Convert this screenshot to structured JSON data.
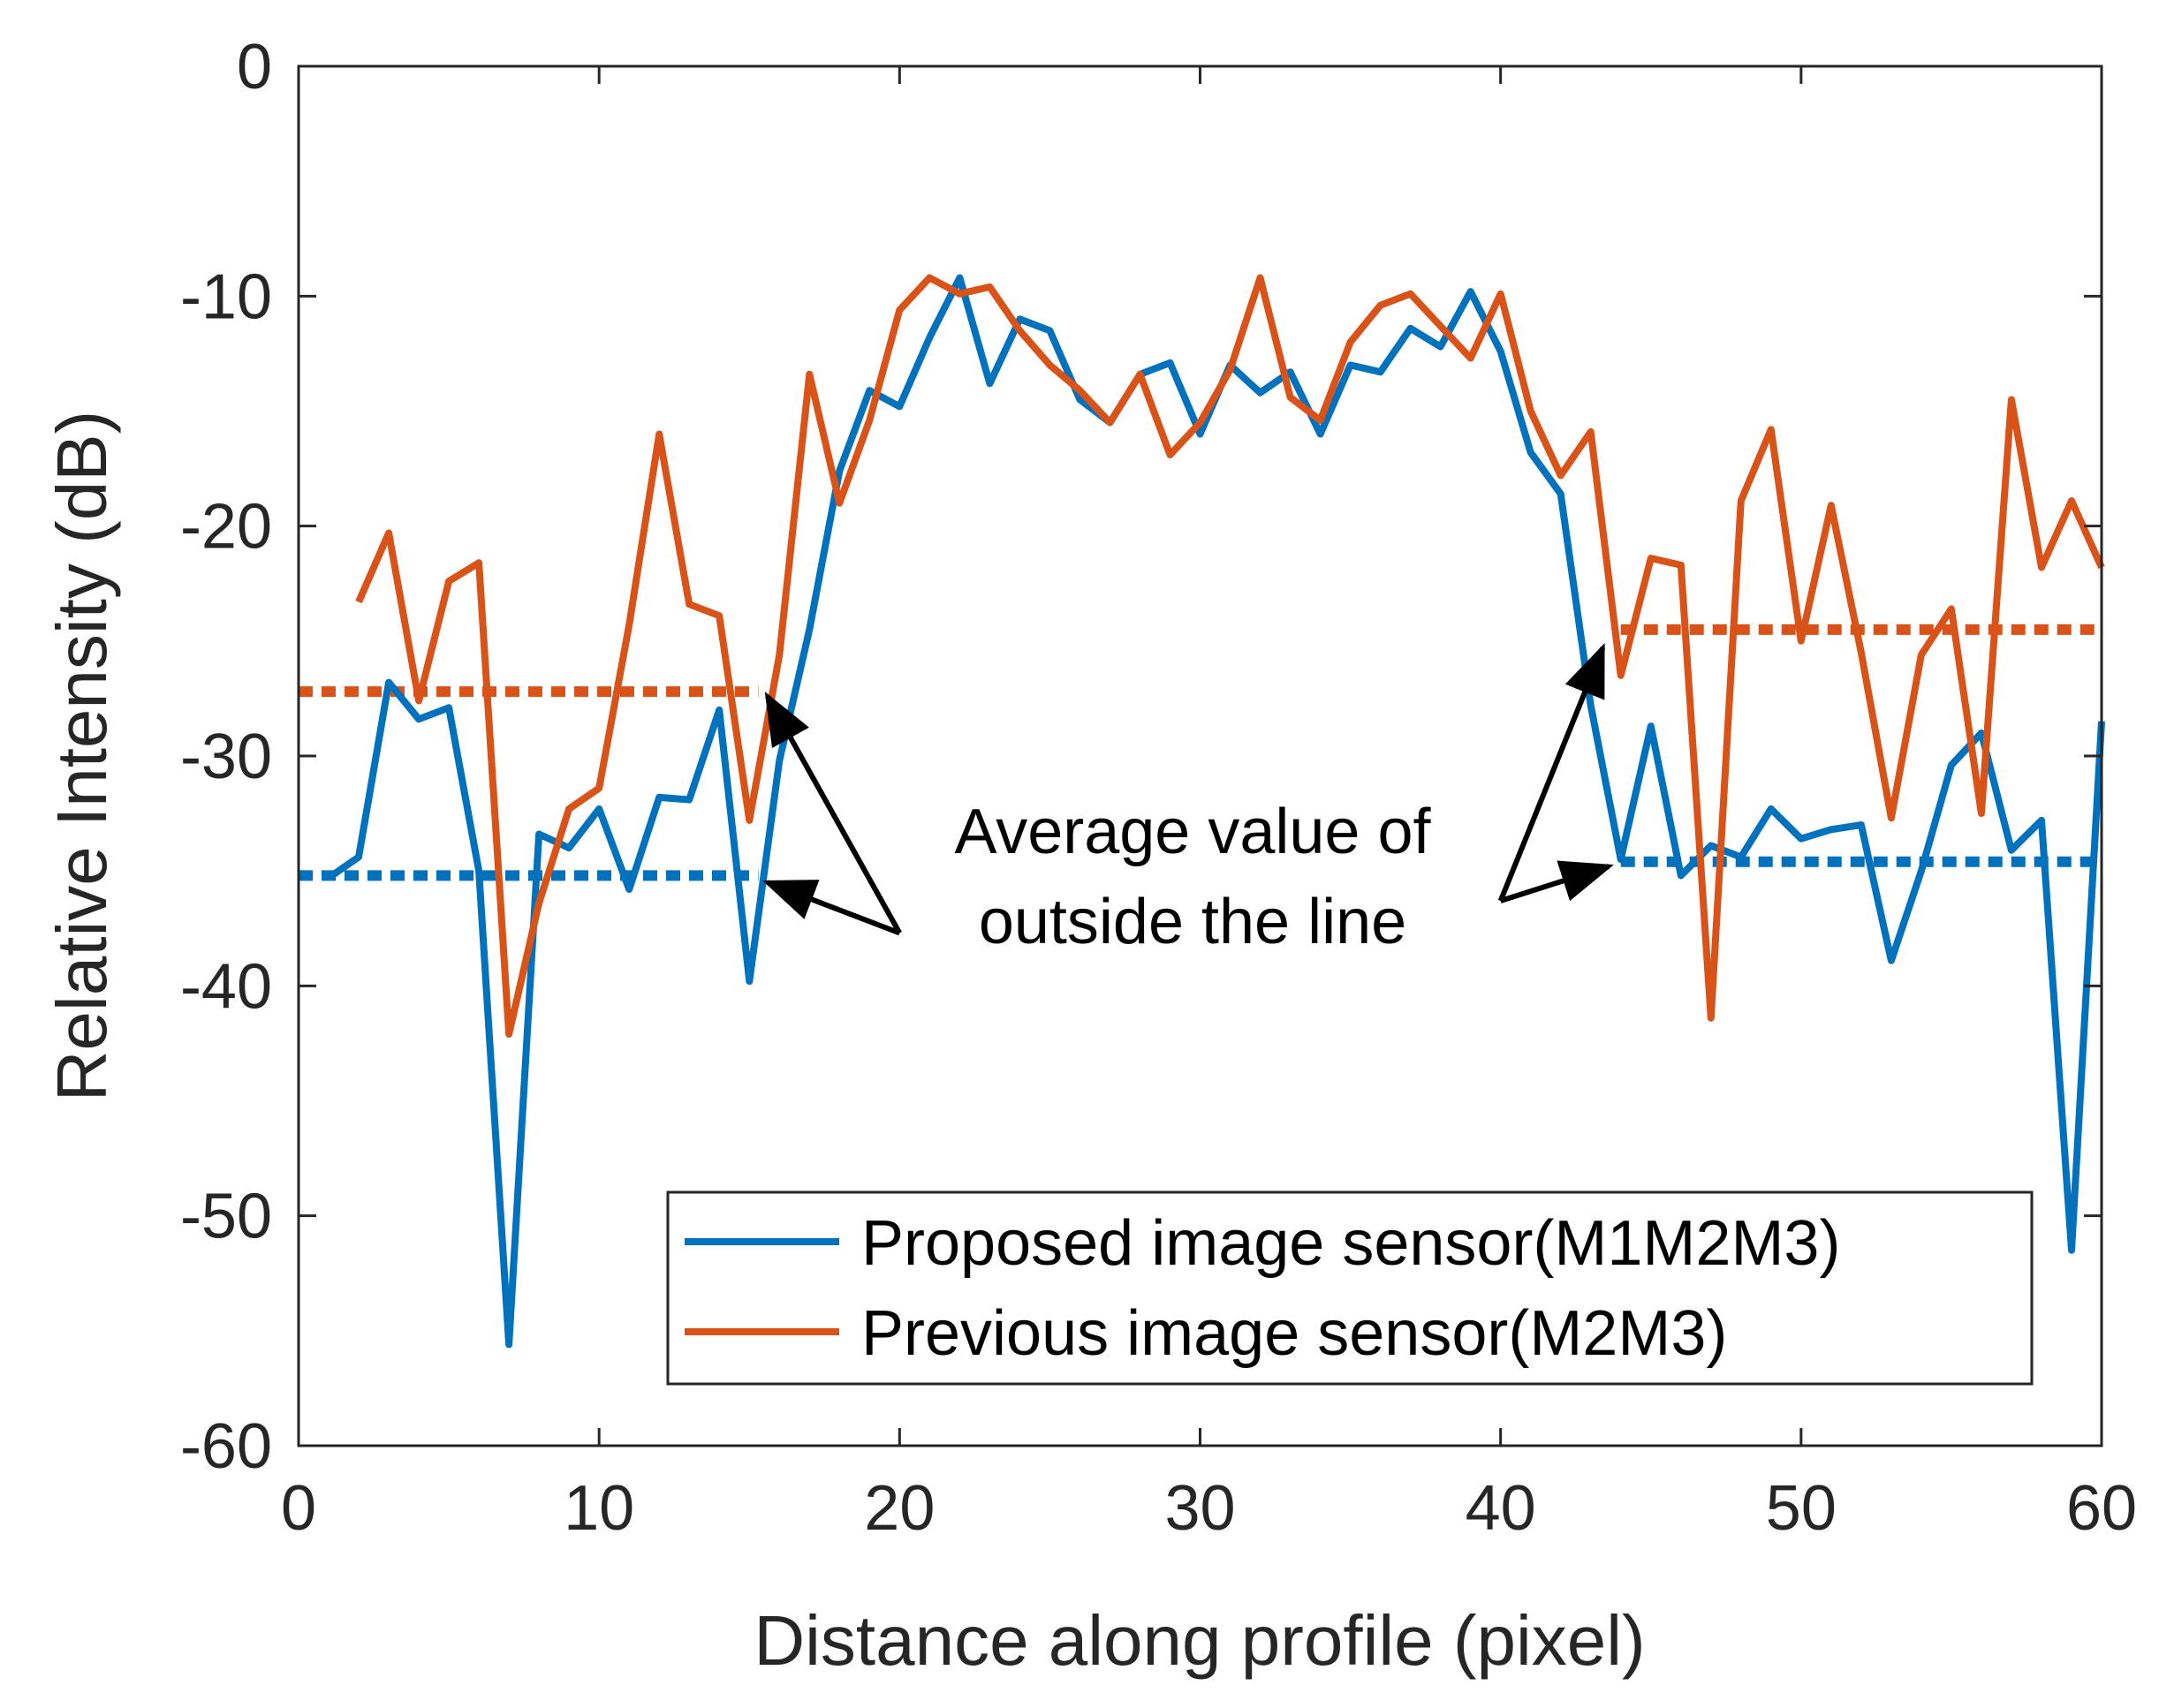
{
  "chart_data": {
    "type": "line",
    "title": "",
    "xlabel": "Distance along profile (pixel)",
    "ylabel": "Relative Intensity (dB)",
    "xlim": [
      0,
      60
    ],
    "ylim": [
      -60,
      0
    ],
    "xticks": [
      0,
      10,
      20,
      30,
      40,
      50,
      60
    ],
    "yticks": [
      0,
      -10,
      -20,
      -30,
      -40,
      -50,
      -60
    ],
    "grid": false,
    "legend_position": "bottom-right",
    "series": [
      {
        "name": "Proposed image sensor(M1M2M3)",
        "color": "#0072BD",
        "x": [
          1,
          2,
          3,
          4,
          5,
          6,
          7,
          8,
          9,
          10,
          11,
          12,
          13,
          14,
          15,
          16,
          17,
          18,
          19,
          20,
          21,
          22,
          23,
          24,
          25,
          26,
          27,
          28,
          29,
          30,
          31,
          32,
          33,
          34,
          35,
          36,
          37,
          38,
          39,
          40,
          41,
          42,
          43,
          44,
          45,
          46,
          47,
          48,
          49,
          50,
          51,
          52,
          53,
          54,
          55,
          56,
          57,
          58,
          59,
          60
        ],
        "values": [
          -35.3,
          -34.4,
          -26.8,
          -28.4,
          -27.9,
          -35.0,
          -55.6,
          -33.4,
          -34.0,
          -32.3,
          -35.8,
          -31.8,
          -31.9,
          -28.0,
          -39.8,
          -30.2,
          -24.5,
          -17.6,
          -14.1,
          -14.8,
          -11.8,
          -9.2,
          -13.8,
          -11.0,
          -11.5,
          -14.5,
          -15.5,
          -13.4,
          -12.9,
          -16.0,
          -13.0,
          -14.2,
          -13.3,
          -16.0,
          -13.0,
          -13.3,
          -11.4,
          -12.2,
          -9.8,
          -12.4,
          -16.8,
          -18.6,
          -27.8,
          -34.5,
          -28.7,
          -35.2,
          -33.9,
          -34.4,
          -32.3,
          -33.6,
          -33.2,
          -33.0,
          -38.9,
          -35.0,
          -30.4,
          -29.0,
          -34.1,
          -32.8,
          -51.5,
          -28.5
        ]
      },
      {
        "name": "Previous image sensor(M2M3)",
        "color": "#D95319",
        "x": [
          2,
          3,
          4,
          5,
          6,
          7,
          8,
          9,
          10,
          11,
          12,
          13,
          14,
          15,
          16,
          17,
          18,
          19,
          20,
          21,
          22,
          23,
          24,
          25,
          26,
          27,
          28,
          29,
          30,
          31,
          32,
          33,
          34,
          35,
          36,
          37,
          38,
          39,
          40,
          41,
          42,
          43,
          44,
          45,
          46,
          47,
          48,
          49,
          50,
          51,
          52,
          53,
          54,
          55,
          56,
          57,
          58,
          59,
          60
        ],
        "values": [
          -23.3,
          -20.3,
          -27.6,
          -22.4,
          -21.6,
          -42.1,
          -36.4,
          -32.3,
          -31.4,
          -24.3,
          -16.0,
          -23.4,
          -23.9,
          -32.8,
          -25.6,
          -13.4,
          -19.0,
          -15.4,
          -10.6,
          -9.2,
          -9.9,
          -9.6,
          -11.5,
          -13.0,
          -14.1,
          -15.5,
          -13.4,
          -16.9,
          -15.5,
          -13.2,
          -9.2,
          -14.4,
          -15.4,
          -12.0,
          -10.4,
          -9.9,
          -11.3,
          -12.7,
          -9.9,
          -15.0,
          -17.8,
          -15.9,
          -26.5,
          -21.4,
          -21.7,
          -41.4,
          -18.9,
          -15.8,
          -25.0,
          -19.1,
          -25.5,
          -32.7,
          -25.6,
          -23.6,
          -32.5,
          -14.5,
          -21.8,
          -18.9,
          -21.8
        ]
      }
    ],
    "reference_lines": [
      {
        "name": "previous-left-average",
        "color": "#D95319",
        "y": -27.2,
        "x_range": [
          0,
          15.3
        ]
      },
      {
        "name": "proposed-left-average",
        "color": "#0072BD",
        "y": -35.2,
        "x_range": [
          0,
          15.3
        ]
      },
      {
        "name": "previous-right-average",
        "color": "#D95319",
        "y": -24.5,
        "x_range": [
          44,
          60
        ]
      },
      {
        "name": "proposed-right-average",
        "color": "#0072BD",
        "y": -34.6,
        "x_range": [
          44,
          60
        ]
      }
    ],
    "annotation": {
      "lines": [
        "Average value of",
        "outside the line"
      ],
      "arrow_targets": [
        {
          "x": 15.6,
          "y": -27.4
        },
        {
          "x": 15.6,
          "y": -35.5
        },
        {
          "x": 43.4,
          "y": -25.3
        },
        {
          "x": 43.6,
          "y": -34.8
        }
      ],
      "arrow_origins": [
        {
          "x": 20.0,
          "y": -37.7
        },
        {
          "x": 20.0,
          "y": -37.7
        },
        {
          "x": 40.0,
          "y": -36.3
        },
        {
          "x": 40.0,
          "y": -36.3
        }
      ]
    }
  }
}
